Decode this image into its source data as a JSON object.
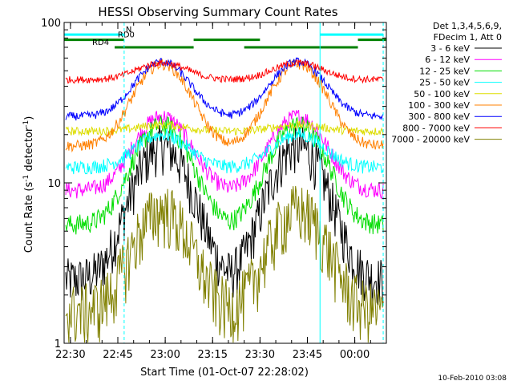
{
  "chart_data": {
    "type": "line",
    "title": "HESSI Observing Summary Count Rates",
    "xlabel": "Start Time (01-Oct-07 22:28:02)",
    "ylabel_parts": [
      "Count Rate (s",
      "-1",
      " detector",
      "-1",
      ")"
    ],
    "x_unit": "minutes since 22:28:02",
    "xlim": [
      0,
      102
    ],
    "ylim": [
      1,
      100
    ],
    "y_scale": "log",
    "x_ticks": [
      {
        "t": 2,
        "label": "22:30"
      },
      {
        "t": 17,
        "label": "22:45"
      },
      {
        "t": 32,
        "label": "23:00"
      },
      {
        "t": 47,
        "label": "23:15"
      },
      {
        "t": 62,
        "label": "23:30"
      },
      {
        "t": 77,
        "label": "23:45"
      },
      {
        "t": 92,
        "label": "00:00"
      }
    ],
    "y_ticks": [
      {
        "v": 1,
        "label": "1"
      },
      {
        "v": 10,
        "label": "10"
      },
      {
        "v": 100,
        "label": "100"
      }
    ],
    "legend_header": [
      "Det 1,3,4,5,6,9,",
      "FDecim 1, Att 0"
    ],
    "legend_position": "right-outside",
    "series": [
      {
        "name": "3 - 6 keV",
        "color": "#000000",
        "baseline": 2.5,
        "peak": 17,
        "noise": 0.35
      },
      {
        "name": "6 - 12 keV",
        "color": "#ff00ff",
        "baseline": 9.0,
        "peak": 26,
        "noise": 0.12
      },
      {
        "name": "12 - 25 keV",
        "color": "#00dd00",
        "baseline": 5.5,
        "peak": 23,
        "noise": 0.15
      },
      {
        "name": "25 - 50 keV",
        "color": "#00ffff",
        "baseline": 12.5,
        "peak": 20,
        "noise": 0.1
      },
      {
        "name": "50 - 100 keV",
        "color": "#dddd00",
        "baseline": 21,
        "peak": 23,
        "noise": 0.06
      },
      {
        "name": "100 - 300 keV",
        "color": "#ff8000",
        "baseline": 17,
        "peak": 55,
        "noise": 0.08
      },
      {
        "name": "300 - 800 keV",
        "color": "#0000ff",
        "baseline": 26,
        "peak": 57,
        "noise": 0.06
      },
      {
        "name": "800 - 7000 keV",
        "color": "#ff0000",
        "baseline": 44,
        "peak": 56,
        "noise": 0.05
      },
      {
        "name": "7000 - 20000 keV",
        "color": "#808000",
        "baseline": 1.6,
        "peak": 6.8,
        "noise": 0.45
      }
    ],
    "night_markers": [
      {
        "t": 0,
        "style": "solid"
      },
      {
        "t": 19,
        "style": "dashed"
      },
      {
        "t": 81,
        "style": "solid"
      },
      {
        "t": 101,
        "style": "dashed"
      }
    ],
    "status_bars": [
      {
        "label": "N",
        "color": "#00ffff",
        "y": 84,
        "segments": [
          [
            0,
            19
          ],
          [
            81,
            101
          ]
        ]
      },
      {
        "label": "RD0",
        "color": "#008000",
        "y": 78,
        "segments": [
          [
            0,
            19
          ]
        ]
      },
      {
        "label": "RD4",
        "color": "#008000",
        "y": 70,
        "segments": [
          [
            16,
            41
          ],
          [
            57,
            93
          ]
        ]
      }
    ],
    "status_bar_upper": {
      "color": "#008000",
      "y": 78,
      "segments": [
        [
          41,
          62
        ],
        [
          93,
          102
        ]
      ]
    }
  },
  "footer_date": "10-Feb-2010 03:08"
}
